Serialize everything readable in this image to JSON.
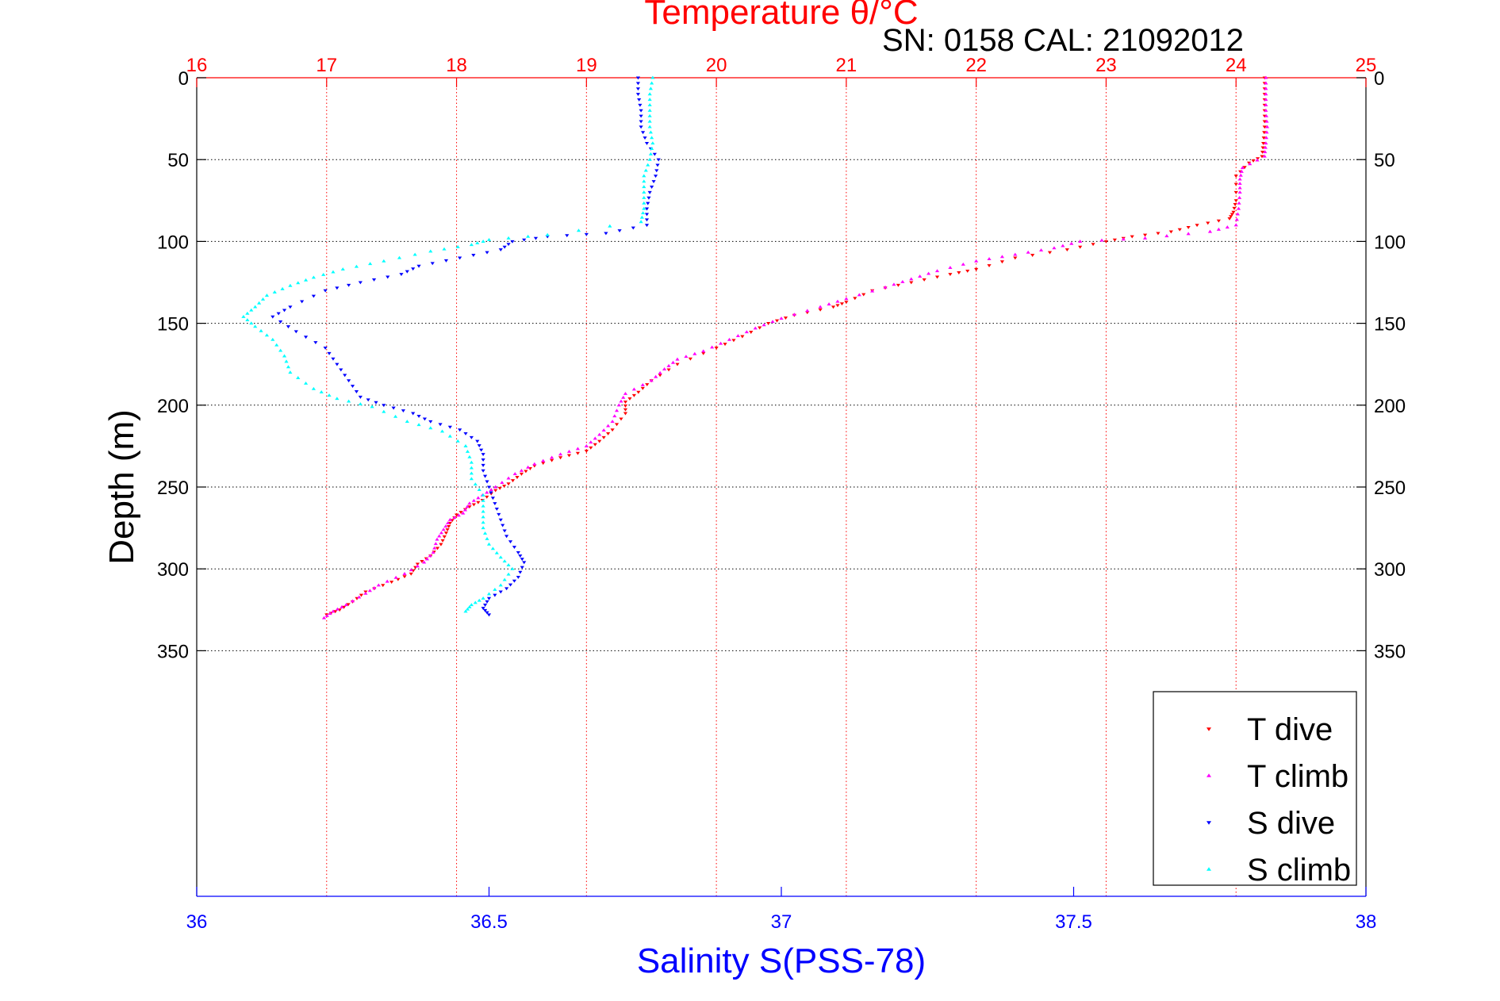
{
  "chart_data": {
    "type": "scatter",
    "title": "Temperature θ/°C",
    "subtitle": "SN: 0158  CAL: 21092012",
    "xlabel_bottom": "Salinity S(PSS-78)",
    "ylabel": "Depth (m)",
    "temperature_axis": {
      "range": [
        16,
        25
      ],
      "ticks": [
        "16",
        "17",
        "18",
        "19",
        "20",
        "21",
        "22",
        "23",
        "24",
        "25"
      ],
      "color": "#ff0000"
    },
    "salinity_axis": {
      "range": [
        36,
        38
      ],
      "ticks": [
        "36",
        "36.5",
        "37",
        "37.5",
        "38"
      ],
      "color": "#0000ff"
    },
    "depth_axis": {
      "range": [
        0,
        500
      ],
      "reversed": true,
      "ticks": [
        "0",
        "50",
        "100",
        "150",
        "200",
        "250",
        "300",
        "350"
      ],
      "tick_values": [
        0,
        50,
        100,
        150,
        200,
        250,
        300,
        350
      ]
    },
    "grid": true,
    "legend": {
      "placement": "bottom-right",
      "entries": [
        "T dive",
        "T climb",
        "S dive",
        "S climb"
      ]
    },
    "series": [
      {
        "name": "T dive",
        "axis": "temperature",
        "color": "#ff0000",
        "marker": "triangle-down",
        "points": [
          [
            24.22,
            0
          ],
          [
            24.22,
            10
          ],
          [
            24.22,
            20
          ],
          [
            24.22,
            30
          ],
          [
            24.21,
            40
          ],
          [
            24.2,
            48
          ],
          [
            24.1,
            52
          ],
          [
            24.0,
            60
          ],
          [
            24.0,
            75
          ],
          [
            23.98,
            82
          ],
          [
            23.95,
            86
          ],
          [
            23.7,
            90
          ],
          [
            23.5,
            94
          ],
          [
            23.2,
            97
          ],
          [
            23.0,
            100
          ],
          [
            22.7,
            105
          ],
          [
            22.3,
            110
          ],
          [
            22.0,
            117
          ],
          [
            21.8,
            120
          ],
          [
            21.5,
            125
          ],
          [
            21.2,
            130
          ],
          [
            21.0,
            137
          ],
          [
            20.9,
            140
          ],
          [
            20.6,
            145
          ],
          [
            20.4,
            150
          ],
          [
            20.2,
            158
          ],
          [
            20.0,
            165
          ],
          [
            19.7,
            175
          ],
          [
            19.5,
            185
          ],
          [
            19.4,
            192
          ],
          [
            19.3,
            198
          ],
          [
            19.3,
            205
          ],
          [
            19.2,
            215
          ],
          [
            19.1,
            222
          ],
          [
            19.0,
            228
          ],
          [
            18.8,
            232
          ],
          [
            18.6,
            237
          ],
          [
            18.5,
            242
          ],
          [
            18.4,
            248
          ],
          [
            18.3,
            252
          ],
          [
            18.2,
            258
          ],
          [
            18.1,
            262
          ],
          [
            18.0,
            267
          ],
          [
            17.95,
            272
          ],
          [
            17.92,
            278
          ],
          [
            17.88,
            285
          ],
          [
            17.8,
            292
          ],
          [
            17.7,
            297
          ],
          [
            17.65,
            303
          ],
          [
            17.5,
            308
          ],
          [
            17.3,
            314
          ],
          [
            17.2,
            320
          ],
          [
            17.1,
            325
          ],
          [
            17.0,
            328
          ]
        ]
      },
      {
        "name": "T climb",
        "axis": "temperature",
        "color": "#ff00ff",
        "marker": "triangle-up",
        "points": [
          [
            24.23,
            0
          ],
          [
            24.23,
            10
          ],
          [
            24.23,
            20
          ],
          [
            24.24,
            30
          ],
          [
            24.23,
            40
          ],
          [
            24.22,
            48
          ],
          [
            24.05,
            55
          ],
          [
            24.03,
            62
          ],
          [
            24.03,
            70
          ],
          [
            24.02,
            80
          ],
          [
            24.0,
            90
          ],
          [
            23.8,
            94
          ],
          [
            23.3,
            98
          ],
          [
            22.8,
            100
          ],
          [
            22.6,
            104
          ],
          [
            22.3,
            108
          ],
          [
            22.0,
            112
          ],
          [
            21.7,
            118
          ],
          [
            21.5,
            123
          ],
          [
            21.3,
            128
          ],
          [
            21.0,
            135
          ],
          [
            20.8,
            140
          ],
          [
            20.5,
            147
          ],
          [
            20.3,
            153
          ],
          [
            20.1,
            160
          ],
          [
            19.9,
            167
          ],
          [
            19.7,
            172
          ],
          [
            19.6,
            178
          ],
          [
            19.5,
            185
          ],
          [
            19.3,
            193
          ],
          [
            19.25,
            200
          ],
          [
            19.2,
            210
          ],
          [
            19.1,
            218
          ],
          [
            19.0,
            225
          ],
          [
            18.8,
            230
          ],
          [
            18.6,
            236
          ],
          [
            18.45,
            242
          ],
          [
            18.3,
            250
          ],
          [
            18.2,
            255
          ],
          [
            18.1,
            260
          ],
          [
            18.05,
            266
          ],
          [
            17.95,
            270
          ],
          [
            17.9,
            276
          ],
          [
            17.85,
            282
          ],
          [
            17.82,
            290
          ],
          [
            17.75,
            296
          ],
          [
            17.6,
            303
          ],
          [
            17.4,
            310
          ],
          [
            17.3,
            315
          ],
          [
            17.15,
            322
          ],
          [
            17.05,
            326
          ],
          [
            16.98,
            330
          ]
        ]
      },
      {
        "name": "S dive",
        "axis": "salinity",
        "color": "#0000ff",
        "marker": "triangle-down",
        "points": [
          [
            36.755,
            0
          ],
          [
            36.755,
            10
          ],
          [
            36.76,
            20
          ],
          [
            36.76,
            30
          ],
          [
            36.77,
            40
          ],
          [
            36.79,
            50
          ],
          [
            36.785,
            60
          ],
          [
            36.775,
            70
          ],
          [
            36.77,
            80
          ],
          [
            36.77,
            90
          ],
          [
            36.7,
            95
          ],
          [
            36.6,
            97
          ],
          [
            36.54,
            100
          ],
          [
            36.52,
            105
          ],
          [
            36.45,
            110
          ],
          [
            36.38,
            115
          ],
          [
            36.35,
            120
          ],
          [
            36.28,
            125
          ],
          [
            36.22,
            130
          ],
          [
            36.16,
            140
          ],
          [
            36.13,
            146
          ],
          [
            36.17,
            155
          ],
          [
            36.22,
            165
          ],
          [
            36.24,
            175
          ],
          [
            36.26,
            185
          ],
          [
            36.28,
            195
          ],
          [
            36.32,
            200
          ],
          [
            36.37,
            205
          ],
          [
            36.4,
            210
          ],
          [
            36.45,
            215
          ],
          [
            36.48,
            222
          ],
          [
            36.49,
            230
          ],
          [
            36.49,
            240
          ],
          [
            36.5,
            250
          ],
          [
            36.51,
            260
          ],
          [
            36.52,
            270
          ],
          [
            36.53,
            280
          ],
          [
            36.55,
            290
          ],
          [
            36.56,
            296
          ],
          [
            36.55,
            305
          ],
          [
            36.53,
            312
          ],
          [
            36.5,
            318
          ],
          [
            36.49,
            324
          ],
          [
            36.5,
            328
          ]
        ]
      },
      {
        "name": "S climb",
        "axis": "salinity",
        "color": "#00ffff",
        "marker": "triangle-up",
        "points": [
          [
            36.78,
            0
          ],
          [
            36.775,
            10
          ],
          [
            36.775,
            20
          ],
          [
            36.775,
            30
          ],
          [
            36.78,
            40
          ],
          [
            36.775,
            50
          ],
          [
            36.765,
            60
          ],
          [
            36.765,
            70
          ],
          [
            36.765,
            80
          ],
          [
            36.76,
            88
          ],
          [
            36.6,
            96
          ],
          [
            36.5,
            99
          ],
          [
            36.47,
            102
          ],
          [
            36.4,
            106
          ],
          [
            36.32,
            112
          ],
          [
            36.25,
            117
          ],
          [
            36.2,
            122
          ],
          [
            36.16,
            127
          ],
          [
            36.12,
            133
          ],
          [
            36.1,
            140
          ],
          [
            36.08,
            146
          ],
          [
            36.1,
            152
          ],
          [
            36.13,
            160
          ],
          [
            36.15,
            170
          ],
          [
            36.16,
            180
          ],
          [
            36.2,
            190
          ],
          [
            36.24,
            196
          ],
          [
            36.3,
            201
          ],
          [
            36.36,
            210
          ],
          [
            36.42,
            216
          ],
          [
            36.46,
            225
          ],
          [
            36.47,
            235
          ],
          [
            36.47,
            245
          ],
          [
            36.49,
            255
          ],
          [
            36.49,
            265
          ],
          [
            36.49,
            275
          ],
          [
            36.5,
            285
          ],
          [
            36.52,
            293
          ],
          [
            36.54,
            300
          ],
          [
            36.52,
            310
          ],
          [
            36.49,
            318
          ],
          [
            36.47,
            322
          ],
          [
            36.46,
            326
          ]
        ]
      }
    ]
  }
}
